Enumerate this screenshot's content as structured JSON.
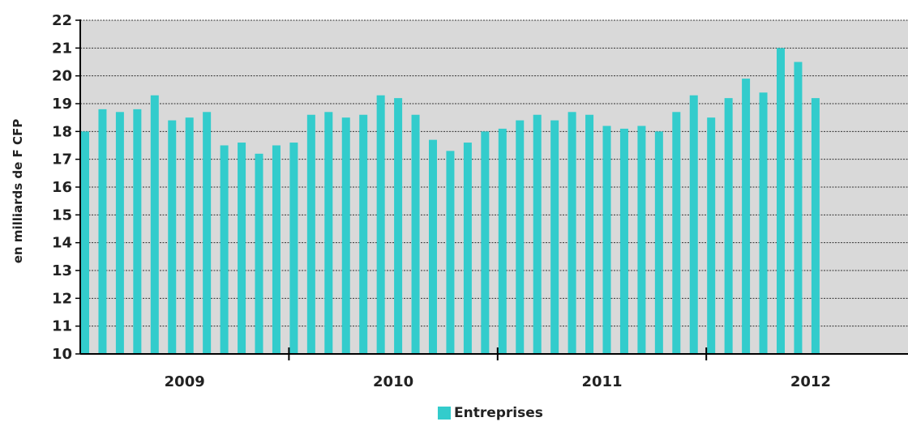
{
  "chart_data": {
    "type": "bar",
    "ylabel": "en  milliards de F CFP",
    "ylim": [
      10,
      22
    ],
    "yticks": [
      10,
      11,
      12,
      13,
      14,
      15,
      16,
      17,
      18,
      19,
      20,
      21,
      22
    ],
    "year_labels": [
      "2009",
      "2010",
      "2011",
      "2012"
    ],
    "grid": true,
    "legend_position": "bottom",
    "series": [
      {
        "name": "Entreprises",
        "color": "#33CCCC",
        "values": [
          18.0,
          18.8,
          18.7,
          18.8,
          19.3,
          18.4,
          18.5,
          18.7,
          17.5,
          17.6,
          17.2,
          17.5,
          17.6,
          18.6,
          18.7,
          18.5,
          18.6,
          19.3,
          19.2,
          18.6,
          17.7,
          17.3,
          17.6,
          18.0,
          18.1,
          18.4,
          18.6,
          18.4,
          18.7,
          18.6,
          18.2,
          18.1,
          18.2,
          18.0,
          18.7,
          19.3,
          18.5,
          19.2,
          19.9,
          19.4,
          21.0,
          20.5,
          19.2
        ]
      }
    ],
    "plot_background": "#D9D9D9"
  }
}
